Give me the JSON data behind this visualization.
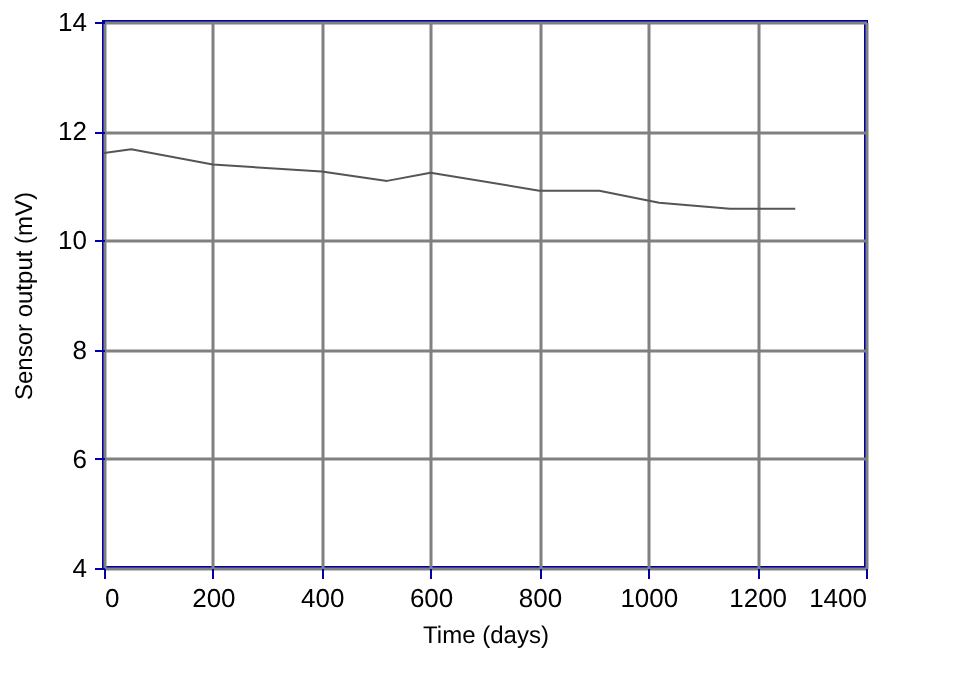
{
  "chart_data": {
    "type": "line",
    "xlabel": "Time (days)",
    "ylabel": "Sensor output (mV)",
    "x": [
      0,
      50,
      200,
      400,
      520,
      600,
      800,
      910,
      1020,
      1150,
      1270
    ],
    "series": [
      {
        "color": "#555555",
        "values": [
          11.6,
          11.67,
          11.39,
          11.26,
          11.09,
          11.24,
          10.91,
          10.91,
          10.69,
          10.58,
          10.58
        ]
      }
    ],
    "xlim": [
      0,
      1400
    ],
    "xticks": [
      0,
      200,
      400,
      600,
      800,
      1000,
      1200,
      1400
    ],
    "ylim": [
      4,
      14
    ],
    "yticks": [
      4,
      6,
      8,
      10,
      12,
      14
    ],
    "grid": true,
    "marker": "none",
    "line_style": "solid"
  }
}
